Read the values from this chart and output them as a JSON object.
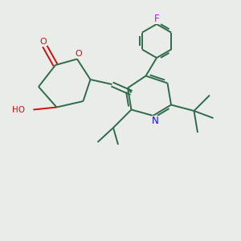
{
  "bg_color": "#eaecea",
  "bond_color": "#2d6b4a",
  "atom_colors": {
    "O": "#cc1111",
    "N": "#1111cc",
    "F": "#cc11cc",
    "C": "#2d6b4a"
  },
  "figsize": [
    3.0,
    3.0
  ],
  "dpi": 100
}
